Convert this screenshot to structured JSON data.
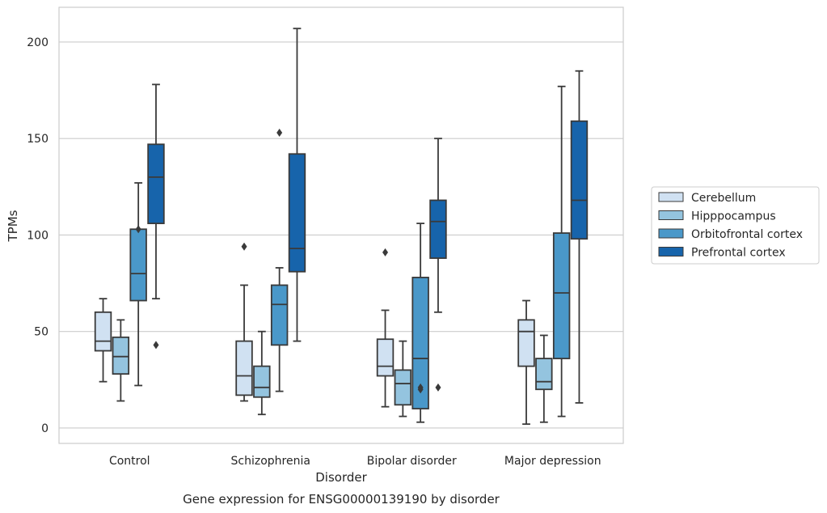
{
  "chart_data": {
    "type": "boxplot",
    "title": "Gene expression for ENSG00000139190 by disorder",
    "xlabel": "Disorder",
    "ylabel": "TPMs",
    "ylim": [
      -8,
      218
    ],
    "yticks": [
      0,
      50,
      100,
      150,
      200
    ],
    "grid": "horizontal",
    "legend_position": "right",
    "categories": [
      "Control",
      "Schizophrenia",
      "Bipolar disorder",
      "Major depression"
    ],
    "series": [
      {
        "name": "Cerebellum",
        "color": "#d0e1f2",
        "boxes": [
          {
            "whislo": 24,
            "q1": 40,
            "med": 45,
            "q3": 60,
            "whishi": 67,
            "fliers": []
          },
          {
            "whislo": 14,
            "q1": 17,
            "med": 27,
            "q3": 45,
            "whishi": 74,
            "fliers": [
              94
            ]
          },
          {
            "whislo": 11,
            "q1": 27,
            "med": 32,
            "q3": 46,
            "whishi": 61,
            "fliers": [
              91
            ]
          },
          {
            "whislo": 2,
            "q1": 32,
            "med": 50,
            "q3": 56,
            "whishi": 66,
            "fliers": []
          }
        ]
      },
      {
        "name": "Hipppocampus",
        "color": "#94c4df",
        "boxes": [
          {
            "whislo": 14,
            "q1": 28,
            "med": 37,
            "q3": 47,
            "whishi": 56,
            "fliers": []
          },
          {
            "whislo": 7,
            "q1": 16,
            "med": 21,
            "q3": 32,
            "whishi": 50,
            "fliers": []
          },
          {
            "whislo": 6,
            "q1": 12,
            "med": 23,
            "q3": 30,
            "whishi": 45,
            "fliers": []
          },
          {
            "whislo": 3,
            "q1": 20,
            "med": 24,
            "q3": 36,
            "whishi": 48,
            "fliers": []
          }
        ]
      },
      {
        "name": "Orbitofrontal cortex",
        "color": "#4a98c9",
        "boxes": [
          {
            "whislo": 22,
            "q1": 66,
            "med": 80,
            "q3": 103,
            "whishi": 127,
            "fliers": [
              103
            ]
          },
          {
            "whislo": 19,
            "q1": 43,
            "med": 64,
            "q3": 74,
            "whishi": 83,
            "fliers": [
              153
            ]
          },
          {
            "whislo": 3,
            "q1": 10,
            "med": 36,
            "q3": 78,
            "whishi": 106,
            "fliers": [
              20,
              21
            ]
          },
          {
            "whislo": 6,
            "q1": 36,
            "med": 70,
            "q3": 101,
            "whishi": 177,
            "fliers": []
          }
        ]
      },
      {
        "name": "Prefrontal cortex",
        "color": "#1764ab",
        "boxes": [
          {
            "whislo": 67,
            "q1": 106,
            "med": 130,
            "q3": 147,
            "whishi": 178,
            "fliers": [
              43
            ]
          },
          {
            "whislo": 45,
            "q1": 81,
            "med": 93,
            "q3": 142,
            "whishi": 207,
            "fliers": []
          },
          {
            "whislo": 60,
            "q1": 88,
            "med": 107,
            "q3": 118,
            "whishi": 150,
            "fliers": [
              21
            ]
          },
          {
            "whislo": 13,
            "q1": 98,
            "med": 118,
            "q3": 159,
            "whishi": 185,
            "fliers": []
          }
        ]
      }
    ]
  }
}
